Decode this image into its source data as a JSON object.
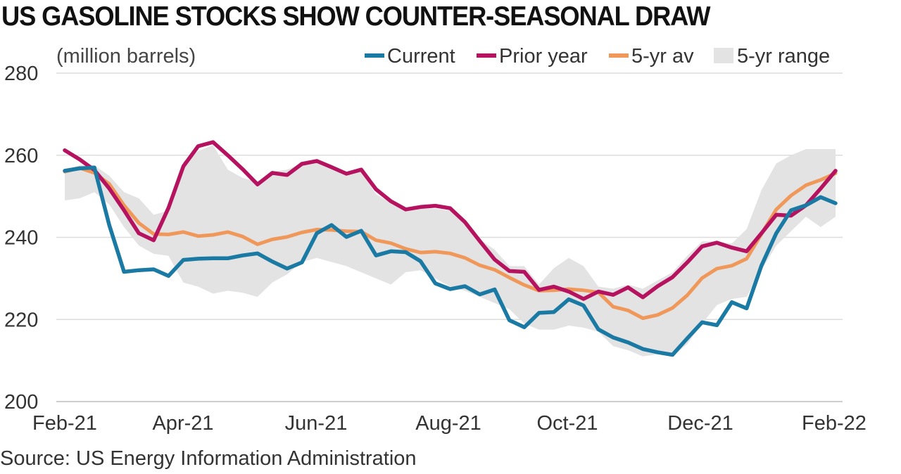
{
  "chart_data": {
    "type": "line",
    "title": "US GASOLINE STOCKS SHOW COUNTER-SEASONAL DRAW",
    "ylabel": "(million barrels)",
    "source": "Source: US Energy Information Administration",
    "ylim": [
      200,
      280
    ],
    "yticks": [
      "200",
      "220",
      "240",
      "260",
      "280"
    ],
    "xticks": [
      "Feb-21",
      "Apr-21",
      "Jun-21",
      "Aug-21",
      "Oct-21",
      "Dec-21",
      "Feb-22"
    ],
    "grid": true,
    "legend": "top-right",
    "colors": {
      "current": "#1a7aa3",
      "prior": "#b5125f",
      "avg": "#f0975a",
      "range": "#e3e3e3"
    },
    "series": [
      {
        "name": "Current",
        "values": [
          256.2,
          256.8,
          257.0,
          243.0,
          231.6,
          232.0,
          232.2,
          230.6,
          234.5,
          234.8,
          234.9,
          234.9,
          235.6,
          236.1,
          234.1,
          232.4,
          233.9,
          241.0,
          243.0,
          240.1,
          241.6,
          235.6,
          236.6,
          236.4,
          234.2,
          228.8,
          227.4,
          228.1,
          226.1,
          227.3,
          219.8,
          218.1,
          221.6,
          221.8,
          224.9,
          223.4,
          217.6,
          215.6,
          214.4,
          212.8,
          212.0,
          211.4,
          215.4,
          219.3,
          218.6,
          224.2,
          222.7,
          233.1,
          241.0,
          246.6,
          247.8,
          249.8,
          248.3
        ]
      },
      {
        "name": "Prior year",
        "values": [
          261.2,
          259.0,
          256.4,
          251.9,
          246.6,
          241.0,
          239.3,
          247.2,
          257.3,
          262.2,
          263.2,
          260.0,
          256.6,
          252.9,
          255.7,
          255.2,
          257.9,
          258.6,
          257.1,
          255.5,
          256.5,
          251.7,
          248.8,
          246.8,
          247.4,
          247.7,
          247.1,
          243.7,
          239.1,
          234.6,
          231.8,
          231.6,
          227.2,
          228.0,
          226.8,
          225.0,
          226.8,
          226.0,
          227.8,
          225.4,
          228.1,
          230.3,
          233.9,
          237.8,
          238.7,
          237.5,
          236.6,
          241.0,
          245.5,
          245.3,
          247.8,
          251.9,
          256.2
        ]
      },
      {
        "name": "5-yr av",
        "values": [
          256.0,
          256.9,
          255.7,
          253.0,
          247.8,
          243.5,
          240.8,
          240.7,
          241.3,
          240.3,
          240.6,
          241.3,
          240.2,
          238.3,
          239.5,
          240.1,
          241.2,
          241.9,
          241.8,
          241.5,
          241.4,
          239.3,
          238.6,
          237.2,
          236.3,
          236.5,
          236.1,
          235.0,
          233.2,
          232.1,
          230.2,
          228.4,
          227.0,
          227.1,
          227.4,
          227.1,
          226.6,
          223.1,
          222.2,
          220.3,
          221.1,
          222.8,
          225.9,
          230.1,
          232.4,
          233.1,
          234.8,
          240.8,
          246.8,
          250.2,
          252.7,
          254.0,
          255.6
        ]
      },
      {
        "name": "5-yr range",
        "low": [
          249.0,
          249.5,
          251.0,
          248.0,
          242.5,
          238.0,
          236.0,
          235.5,
          229.0,
          228.0,
          226.3,
          227.0,
          226.5,
          225.5,
          229.0,
          231.0,
          234.0,
          235.0,
          234.0,
          233.0,
          231.5,
          230.0,
          228.5,
          231.5,
          232.0,
          230.0,
          228.0,
          227.0,
          225.5,
          224.0,
          222.5,
          219.0,
          217.5,
          217.5,
          218.5,
          218.0,
          217.0,
          213.5,
          212.5,
          211.0,
          211.5,
          211.0,
          214.0,
          219.0,
          223.5,
          225.0,
          225.5,
          232.0,
          238.0,
          241.5,
          245.0,
          242.5,
          245.0
        ],
        "high": [
          256.5,
          257.5,
          257.5,
          255.0,
          251.0,
          249.5,
          245.5,
          246.5,
          258.5,
          261.0,
          262.5,
          256.5,
          254.5,
          253.5,
          256.0,
          256.5,
          258.0,
          258.5,
          257.5,
          256.0,
          256.0,
          250.5,
          248.5,
          247.0,
          247.0,
          247.0,
          246.5,
          244.0,
          239.5,
          237.0,
          233.0,
          233.0,
          228.5,
          232.5,
          235.0,
          233.0,
          228.0,
          227.5,
          228.5,
          227.5,
          229.5,
          231.5,
          235.5,
          239.0,
          239.0,
          238.5,
          242.0,
          251.5,
          258.0,
          260.0,
          261.5,
          261.5,
          261.5
        ]
      }
    ]
  }
}
